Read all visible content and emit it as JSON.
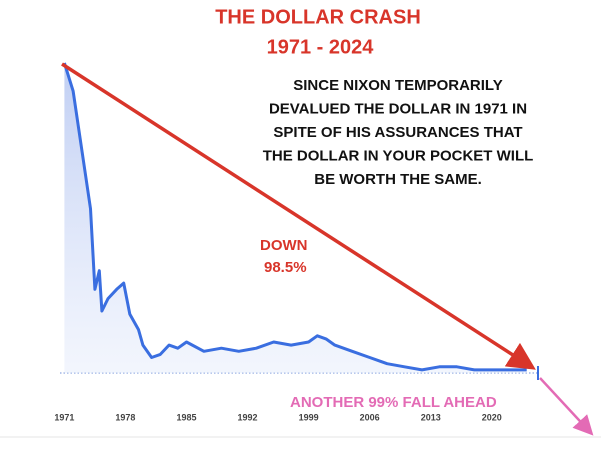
{
  "chart_data": {
    "type": "line",
    "title": "THE DOLLAR CRASH",
    "subtitle": "1971 - 2024",
    "annotation": [
      "SINCE NIXON TEMPORARILY",
      "DEVALUED THE DOLLAR IN 1971 IN",
      "SPITE OF HIS ASSURANCES THAT",
      "THE DOLLAR IN YOUR POCKET WILL",
      "BE WORTH THE SAME."
    ],
    "drop_label": "DOWN",
    "drop_value": "98.5%",
    "forecast_label": "ANOTHER  99% FALL AHEAD",
    "x": [
      1971,
      1972,
      1973,
      1974,
      1974.5,
      1975,
      1975.3,
      1976,
      1977,
      1977.8,
      1978.5,
      1979.5,
      1980,
      1981,
      1982,
      1983,
      1984,
      1985,
      1987,
      1989,
      1991,
      1993,
      1995,
      1997,
      1999,
      2000,
      2001,
      2002,
      2004,
      2006,
      2008,
      2010,
      2012,
      2014,
      2016,
      2018,
      2020,
      2022,
      2024
    ],
    "values": [
      100,
      91,
      72,
      53,
      27,
      33,
      20,
      24,
      27,
      29,
      19,
      14,
      9,
      5,
      6,
      9,
      8,
      10,
      7,
      8,
      7,
      8,
      10,
      9,
      10,
      12,
      11,
      9,
      7,
      5,
      3,
      2,
      1,
      2,
      2,
      1,
      1,
      1,
      1
    ],
    "color": "#3a6ee0",
    "xlim": [
      1970.5,
      2025.3
    ],
    "xticks": [
      1971,
      1978,
      1985,
      1992,
      1999,
      2006,
      2013,
      2020
    ],
    "ylim": [
      0,
      100
    ]
  }
}
